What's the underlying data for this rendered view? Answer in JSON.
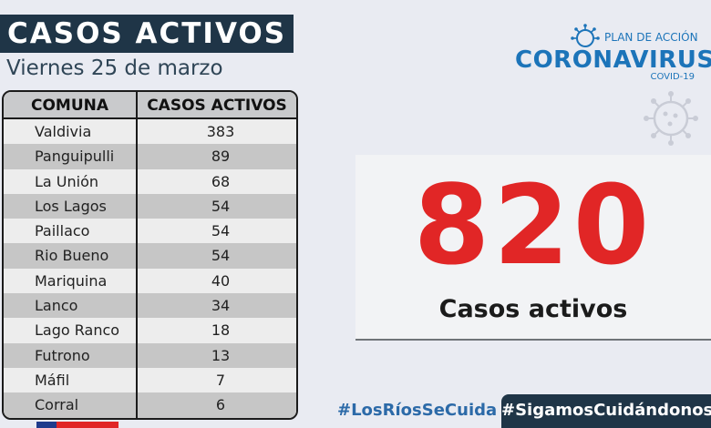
{
  "header": {
    "title": "CASOS ACTIVOS",
    "date": "Viernes 25 de marzo"
  },
  "table": {
    "headers": [
      "COMUNA",
      "CASOS ACTIVOS"
    ],
    "rows": [
      {
        "comuna": "Valdivia",
        "casos": "383"
      },
      {
        "comuna": "Panguipulli",
        "casos": "89"
      },
      {
        "comuna": "La Unión",
        "casos": "68"
      },
      {
        "comuna": "Los Lagos",
        "casos": "54"
      },
      {
        "comuna": "Paillaco",
        "casos": "54"
      },
      {
        "comuna": "Rio Bueno",
        "casos": "54"
      },
      {
        "comuna": "Mariquina",
        "casos": "40"
      },
      {
        "comuna": "Lanco",
        "casos": "34"
      },
      {
        "comuna": "Lago Ranco",
        "casos": "18"
      },
      {
        "comuna": "Futrono",
        "casos": "13"
      },
      {
        "comuna": "Máfil",
        "casos": "7"
      },
      {
        "comuna": "Corral",
        "casos": "6"
      }
    ]
  },
  "logo": {
    "plan": "PLAN DE ACCIÓN",
    "name": "CORONAVIRUS",
    "subtitle": "COVID-19"
  },
  "total": {
    "value": "820",
    "label": "Casos activos"
  },
  "footer": {
    "hashtag_left": "#LosRíosSeCuida",
    "hashtag_right": "#SigamosCuidándonos"
  },
  "colors": {
    "accent_navy": "#1f3547",
    "brand_blue": "#1c74b9",
    "highlight_red": "#e12626"
  }
}
